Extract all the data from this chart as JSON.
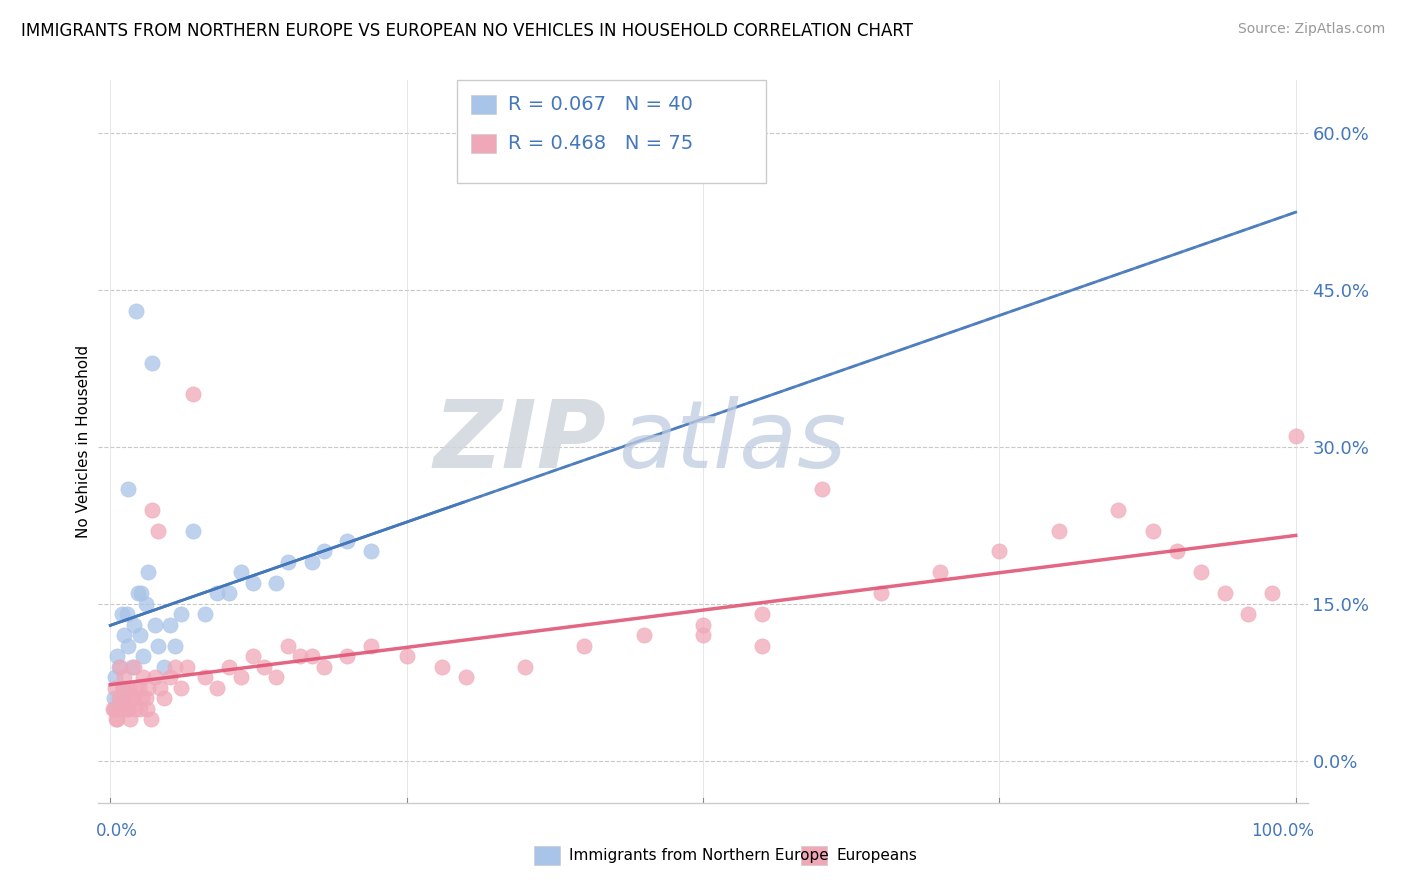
{
  "title": "IMMIGRANTS FROM NORTHERN EUROPE VS EUROPEAN NO VEHICLES IN HOUSEHOLD CORRELATION CHART",
  "source": "Source: ZipAtlas.com",
  "ylabel": "No Vehicles in Household",
  "ytick_vals": [
    0,
    15,
    30,
    45,
    60
  ],
  "ytick_labels": [
    "0.0%",
    "15.0%",
    "30.0%",
    "45.0%",
    "60.0%"
  ],
  "xlim": [
    -1,
    101
  ],
  "ylim": [
    -4,
    65
  ],
  "blue_color": "#a8c4e8",
  "pink_color": "#f0a8b8",
  "blue_line_color": "#4477bb",
  "pink_line_color": "#e05575",
  "blue_dash_color": "#7799cc",
  "watermark_zip": "ZIP",
  "watermark_atlas": "atlas",
  "legend_blue_text": "R = 0.067   N = 40",
  "legend_pink_text": "R = 0.468   N = 75",
  "bottom_legend_blue": "Immigrants from Northern Europe",
  "bottom_legend_pink": "Europeans",
  "blue_x": [
    0.4,
    0.6,
    0.8,
    1.0,
    1.2,
    1.5,
    1.8,
    2.0,
    2.3,
    2.5,
    2.8,
    3.0,
    3.5,
    4.0,
    1.5,
    2.2,
    4.5,
    5.0,
    5.5,
    7.0,
    8.0,
    10.0,
    12.0,
    15.0,
    18.0,
    0.3,
    0.5,
    0.7,
    1.1,
    1.4,
    2.6,
    3.2,
    3.8,
    6.0,
    9.0,
    11.0,
    14.0,
    17.0,
    20.0,
    22.0
  ],
  "blue_y": [
    8.0,
    10.0,
    6.0,
    14.0,
    12.0,
    11.0,
    9.0,
    13.0,
    16.0,
    12.0,
    10.0,
    15.0,
    38.0,
    11.0,
    26.0,
    43.0,
    9.0,
    13.0,
    11.0,
    22.0,
    14.0,
    16.0,
    17.0,
    19.0,
    20.0,
    6.0,
    5.0,
    9.0,
    7.0,
    14.0,
    16.0,
    18.0,
    13.0,
    14.0,
    16.0,
    18.0,
    17.0,
    19.0,
    21.0,
    20.0
  ],
  "pink_x": [
    0.2,
    0.4,
    0.6,
    0.8,
    1.0,
    1.2,
    1.4,
    1.6,
    1.8,
    2.0,
    2.2,
    2.5,
    2.8,
    3.0,
    3.2,
    3.5,
    3.8,
    4.0,
    4.2,
    4.5,
    5.0,
    5.5,
    6.0,
    7.0,
    8.0,
    9.0,
    10.0,
    11.0,
    12.0,
    13.0,
    14.0,
    15.0,
    16.0,
    18.0,
    20.0,
    22.0,
    25.0,
    28.0,
    30.0,
    35.0,
    40.0,
    45.0,
    50.0,
    55.0,
    60.0,
    65.0,
    70.0,
    75.0,
    80.0,
    85.0,
    88.0,
    90.0,
    92.0,
    94.0,
    96.0,
    98.0,
    100.0,
    0.3,
    0.5,
    0.7,
    0.9,
    1.1,
    1.3,
    1.5,
    1.7,
    1.9,
    2.1,
    2.4,
    2.7,
    3.1,
    3.4,
    6.5,
    17.0,
    50.0,
    55.0
  ],
  "pink_y": [
    5.0,
    7.0,
    4.0,
    9.0,
    6.0,
    8.0,
    5.0,
    7.0,
    6.0,
    9.0,
    7.0,
    5.0,
    8.0,
    6.0,
    7.0,
    24.0,
    8.0,
    22.0,
    7.0,
    6.0,
    8.0,
    9.0,
    7.0,
    35.0,
    8.0,
    7.0,
    9.0,
    8.0,
    10.0,
    9.0,
    8.0,
    11.0,
    10.0,
    9.0,
    10.0,
    11.0,
    10.0,
    9.0,
    8.0,
    9.0,
    11.0,
    12.0,
    13.0,
    14.0,
    26.0,
    16.0,
    18.0,
    20.0,
    22.0,
    24.0,
    22.0,
    20.0,
    18.0,
    16.0,
    14.0,
    16.0,
    31.0,
    5.0,
    4.0,
    6.0,
    5.0,
    7.0,
    6.0,
    5.0,
    4.0,
    6.0,
    5.0,
    7.0,
    6.0,
    5.0,
    4.0,
    9.0,
    10.0,
    12.0,
    11.0
  ]
}
